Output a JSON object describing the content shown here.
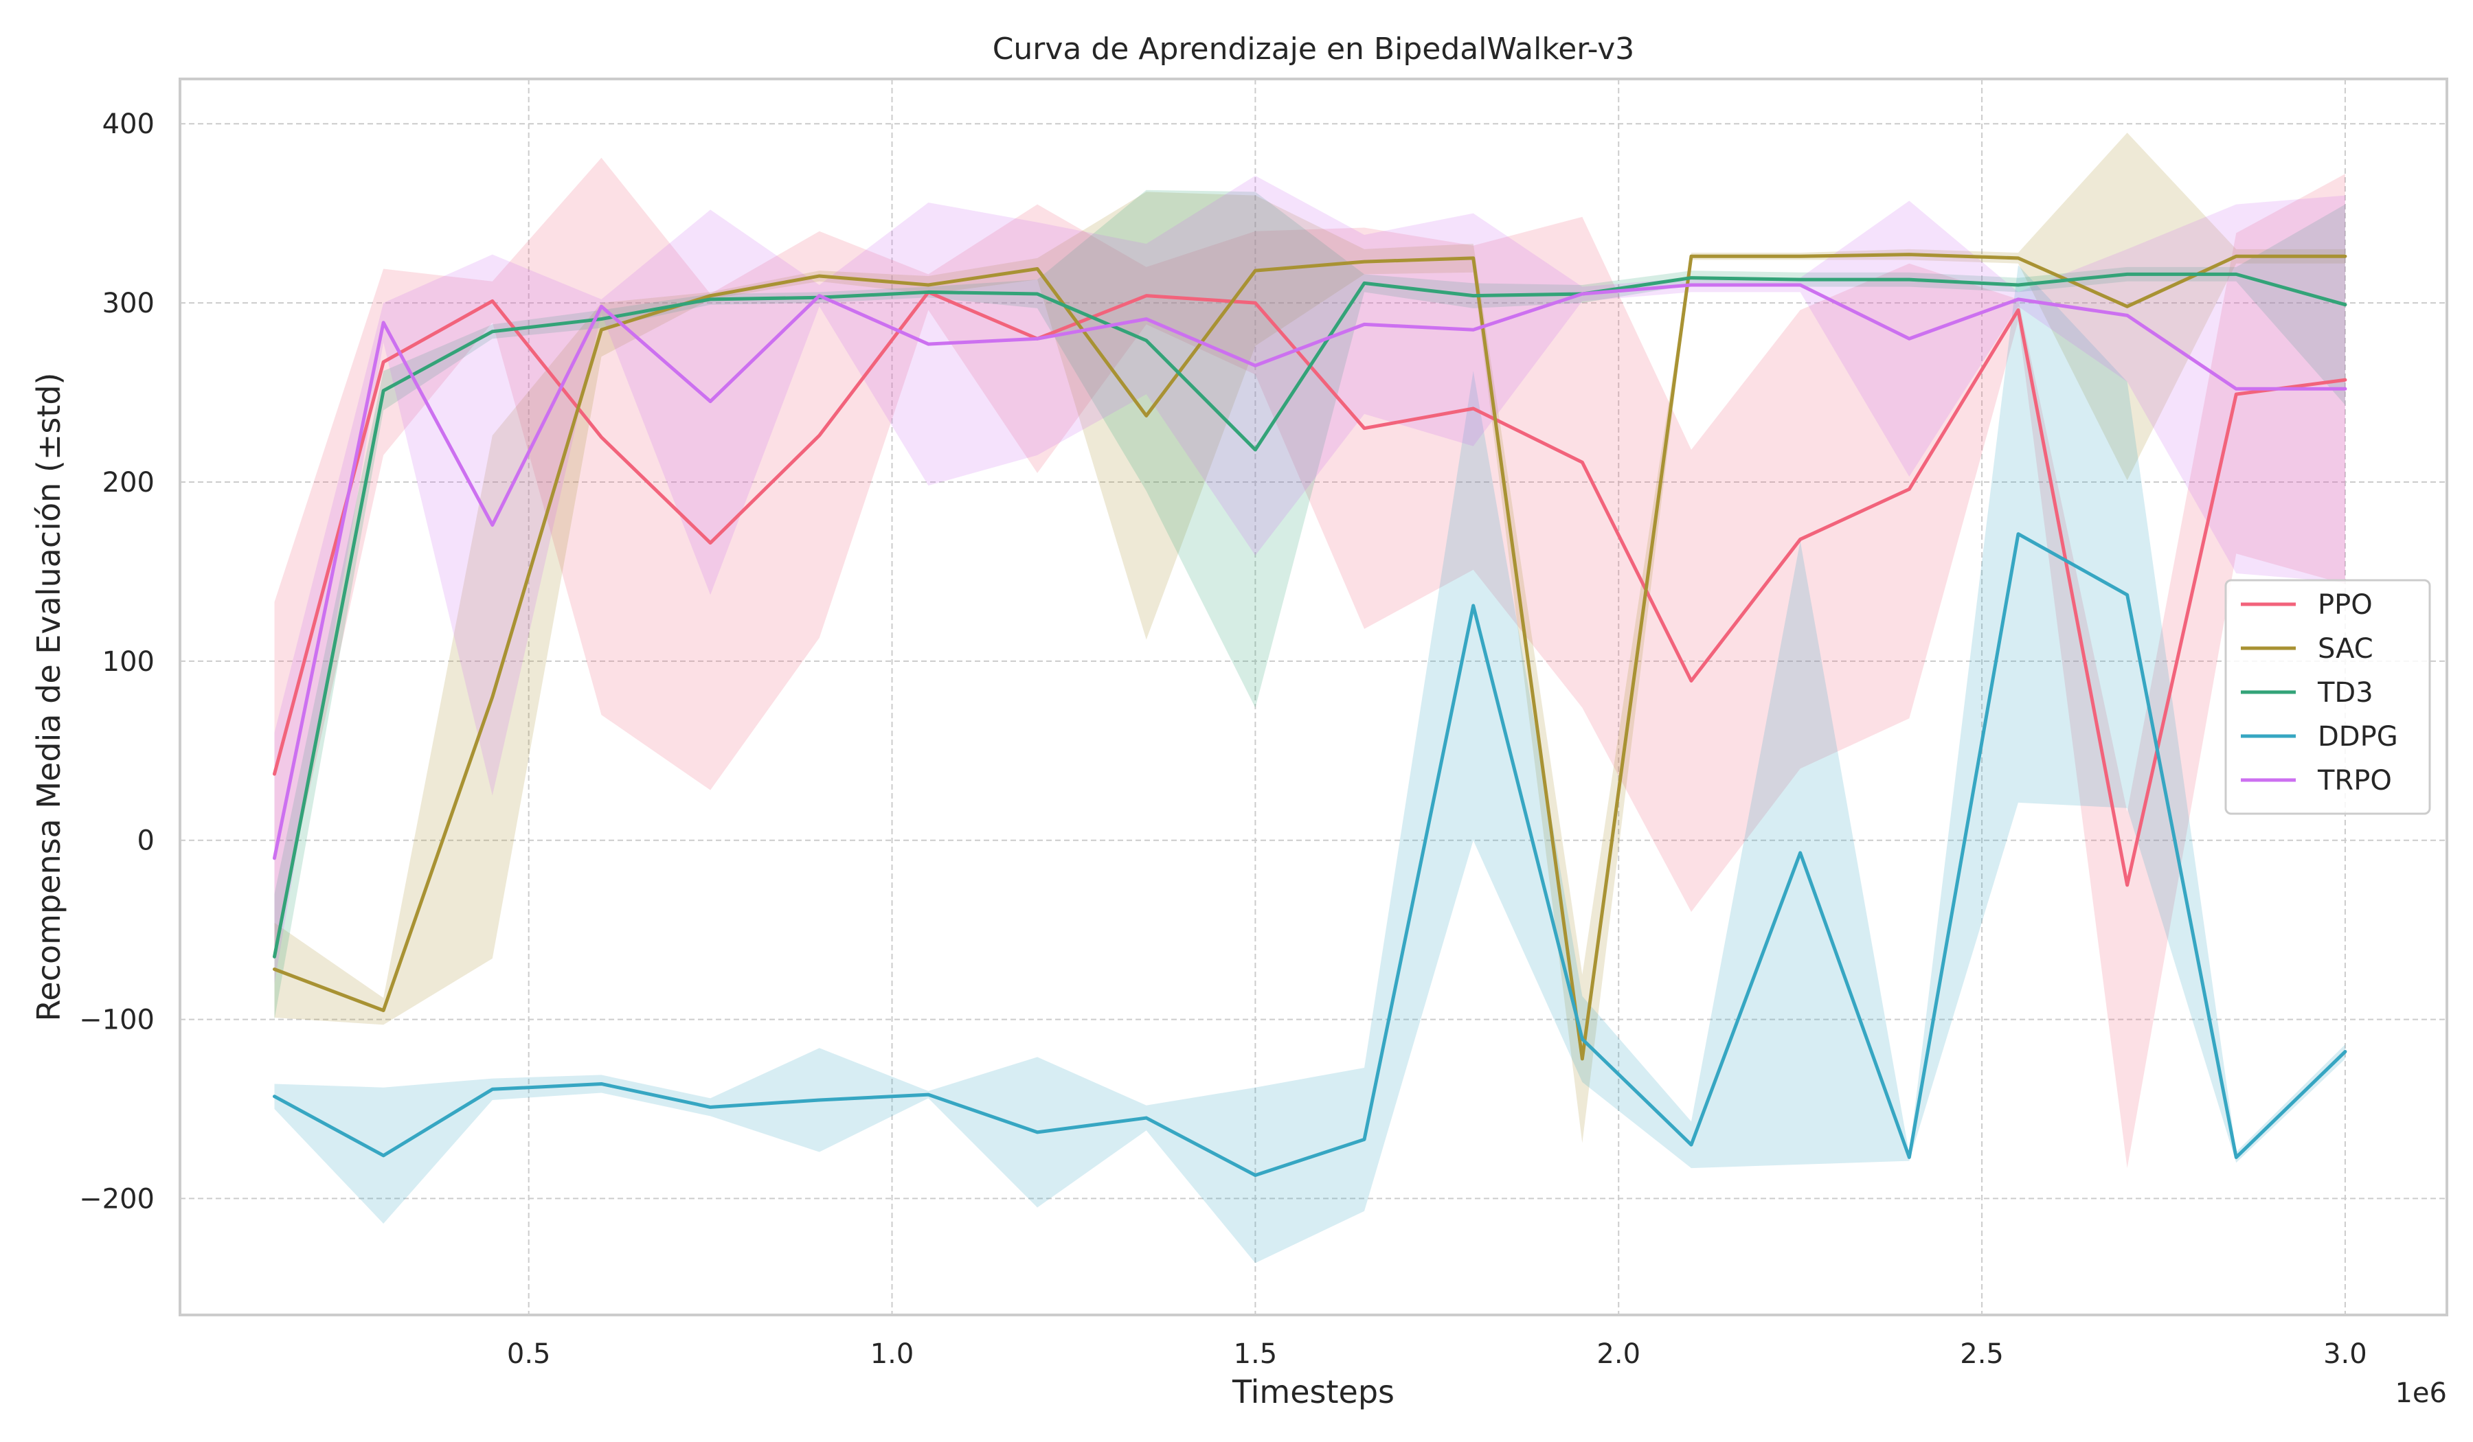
{
  "chart_data": {
    "type": "line",
    "title": "Curva de Aprendizaje en BipedalWalker-v3",
    "xlabel": "Timesteps",
    "ylabel": "Recompensa Media de Evaluación (±std)",
    "x_offset_label": "1e6",
    "xlim": [
      0.02,
      3.14
    ],
    "ylim": [
      -265,
      425
    ],
    "x_ticks": [
      0.5,
      1.0,
      1.5,
      2.0,
      2.5,
      3.0
    ],
    "x_tick_labels": [
      "0.5",
      "1.0",
      "1.5",
      "2.0",
      "2.5",
      "3.0"
    ],
    "y_ticks": [
      -200,
      -100,
      0,
      100,
      200,
      300,
      400
    ],
    "y_tick_labels": [
      "−200",
      "−100",
      "0",
      "100",
      "200",
      "300",
      "400"
    ],
    "grid": true,
    "legend_position": "center-right",
    "x": [
      0.15,
      0.3,
      0.45,
      0.6,
      0.75,
      0.9,
      1.05,
      1.2,
      1.35,
      1.5,
      1.65,
      1.8,
      1.95,
      2.1,
      2.25,
      2.4,
      2.55,
      2.7,
      2.85,
      3.0
    ],
    "series": [
      {
        "name": "PPO",
        "color": "#f2637b",
        "values": [
          37,
          267,
          301,
          225,
          166,
          226,
          306,
          280,
          304,
          300,
          230,
          241,
          211,
          89,
          168,
          196,
          296,
          -25,
          249,
          257
        ],
        "upper": [
          133,
          319,
          312,
          381,
          305,
          340,
          316,
          355,
          320,
          340,
          342,
          332,
          348,
          218,
          296,
          322,
          302,
          16,
          339,
          372
        ],
        "lower": [
          -60,
          215,
          289,
          70,
          28,
          113,
          296,
          205,
          288,
          260,
          118,
          151,
          74,
          -40,
          40,
          68,
          290,
          -183,
          160,
          143
        ]
      },
      {
        "name": "SAC",
        "color": "#a89233",
        "values": [
          -72,
          -95,
          80,
          285,
          304,
          315,
          310,
          319,
          237,
          318,
          323,
          325,
          -122,
          326,
          326,
          327,
          325,
          298,
          326,
          326
        ],
        "upper": [
          -46,
          -88,
          226,
          300,
          306,
          318,
          315,
          325,
          362,
          360,
          330,
          333,
          -75,
          328,
          328,
          330,
          328,
          395,
          330,
          330
        ],
        "lower": [
          -99,
          -103,
          -66,
          270,
          302,
          312,
          305,
          313,
          112,
          276,
          316,
          317,
          -169,
          324,
          324,
          324,
          322,
          201,
          322,
          322
        ]
      },
      {
        "name": "TD3",
        "color": "#33a378",
        "values": [
          -65,
          251,
          284,
          291,
          302,
          303,
          306,
          305,
          279,
          218,
          311,
          304,
          305,
          314,
          313,
          313,
          310,
          316,
          316,
          299
        ],
        "upper": [
          -30,
          262,
          288,
          296,
          305,
          306,
          309,
          313,
          363,
          362,
          316,
          311,
          310,
          318,
          317,
          317,
          314,
          320,
          320,
          355
        ],
        "lower": [
          -100,
          240,
          280,
          286,
          299,
          300,
          303,
          297,
          195,
          74,
          306,
          297,
          300,
          310,
          309,
          309,
          306,
          312,
          312,
          243
        ]
      },
      {
        "name": "DDPG",
        "color": "#36a6c2",
        "values": [
          -143,
          -176,
          -139,
          -136,
          -149,
          -145,
          -142,
          -163,
          -155,
          -187,
          -167,
          131,
          -111,
          -170,
          -7,
          -177,
          171,
          137,
          -177,
          -118
        ],
        "upper": [
          -136,
          -138,
          -133,
          -131,
          -144,
          -116,
          -140,
          -121,
          -148,
          -138,
          -127,
          262,
          -87,
          -157,
          167,
          -175,
          321,
          256,
          -174,
          -114
        ],
        "lower": [
          -150,
          -214,
          -145,
          -141,
          -154,
          -174,
          -144,
          -205,
          -162,
          -236,
          -207,
          0,
          -135,
          -183,
          -181,
          -179,
          21,
          18,
          -180,
          -122
        ]
      },
      {
        "name": "TRPO",
        "color": "#cc70f0",
        "values": [
          -10,
          289,
          176,
          298,
          245,
          304,
          277,
          280,
          291,
          265,
          288,
          285,
          305,
          310,
          310,
          280,
          302,
          293,
          252,
          252
        ],
        "upper": [
          60,
          300,
          327,
          302,
          352,
          310,
          356,
          345,
          333,
          371,
          338,
          350,
          309,
          314,
          314,
          357,
          306,
          330,
          355,
          360
        ],
        "lower": [
          -80,
          278,
          25,
          294,
          137,
          298,
          198,
          215,
          249,
          159,
          238,
          220,
          301,
          306,
          306,
          203,
          298,
          256,
          149,
          144
        ]
      }
    ]
  }
}
